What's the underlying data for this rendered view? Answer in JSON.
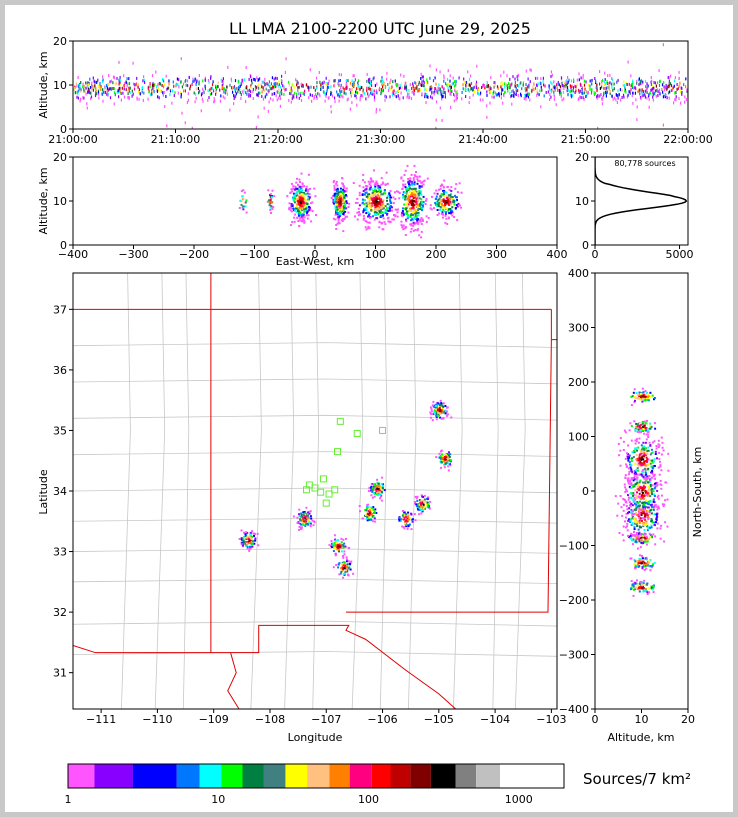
{
  "title": "LL LMA 2100-2200 UTC June 29, 2025",
  "time_panel": {
    "ylabel": "Altitude, km",
    "yticks": [
      "0",
      "10",
      "20"
    ],
    "xticks": [
      "21:00:00",
      "21:10:00",
      "21:20:00",
      "21:30:00",
      "21:40:00",
      "21:50:00",
      "22:00:00"
    ]
  },
  "ew_panel": {
    "ylabel": "Altitude, km",
    "xlabel": "East-West, km",
    "yticks": [
      "0",
      "10",
      "20"
    ],
    "xticks": [
      "−400",
      "−300",
      "−200",
      "−100",
      "0",
      "100",
      "200",
      "300",
      "400"
    ]
  },
  "hist_panel": {
    "annotation": "80,778 sources",
    "xticks": [
      "0",
      "5000"
    ],
    "yticks": [
      "0",
      "10",
      "20"
    ]
  },
  "map_panel": {
    "xlabel": "Longitude",
    "ylabel": "Latitude",
    "xticks": [
      "−111",
      "−110",
      "−109",
      "−108",
      "−107",
      "−106",
      "−105",
      "−104",
      "−103"
    ],
    "yticks": [
      "31",
      "32",
      "33",
      "34",
      "35",
      "36",
      "37"
    ]
  },
  "ns_panel": {
    "ylabel": "North-South, km",
    "xlabel": "Altitude, km",
    "yticks": [
      "−400",
      "−300",
      "−200",
      "−100",
      "0",
      "100",
      "200",
      "300",
      "400"
    ],
    "xticks": [
      "0",
      "10",
      "20"
    ]
  },
  "colorbar": {
    "label": "Sources/7 km²",
    "ticks": [
      "1",
      "10",
      "100",
      "1000"
    ],
    "colors": [
      "#ff55ff",
      "#8800ff",
      "#0000ff",
      "#0077ff",
      "#00ffff",
      "#00ff00",
      "#008040",
      "#408080",
      "#ffff00",
      "#ffc080",
      "#ff8000",
      "#ff0080",
      "#ff0000",
      "#c00000",
      "#800000",
      "#000000",
      "#808080",
      "#c0c0c0",
      "#ffffff"
    ]
  },
  "chart_data": [
    {
      "type": "scatter",
      "panel": "altitude-vs-time",
      "title": "LL LMA 2100-2200 UTC June 29, 2025",
      "ylabel": "Altitude, km",
      "xlim": [
        "21:00:00",
        "22:00:00"
      ],
      "ylim": [
        0,
        20
      ],
      "note": "dense VHF sources concentrated near 10 km altitude throughout the hour"
    },
    {
      "type": "scatter",
      "panel": "altitude-vs-east-west",
      "xlabel": "East-West, km",
      "ylabel": "Altitude, km",
      "xlim": [
        -400,
        400
      ],
      "ylim": [
        0,
        20
      ],
      "clusters_x_km": [
        -120,
        -75,
        -25,
        40,
        100,
        160,
        215
      ]
    },
    {
      "type": "line",
      "panel": "altitude-histogram",
      "annotation": "80,778 sources",
      "xlim": [
        0,
        5500
      ],
      "ylim": [
        0,
        20
      ],
      "peak": {
        "altitude_km": 10,
        "count": 5400
      }
    },
    {
      "type": "scatter",
      "panel": "plan-view-map",
      "xlabel": "Longitude",
      "ylabel": "Latitude",
      "xlim": [
        -111.5,
        -102.9
      ],
      "ylim": [
        30.4,
        37.6
      ],
      "source_clusters": [
        {
          "lon": -107.4,
          "lat": 33.55
        },
        {
          "lon": -106.8,
          "lat": 33.1
        },
        {
          "lon": -106.1,
          "lat": 34.05
        },
        {
          "lon": -105.6,
          "lat": 33.55
        },
        {
          "lon": -105.3,
          "lat": 33.8
        },
        {
          "lon": -104.9,
          "lat": 34.55
        },
        {
          "lon": -105.0,
          "lat": 35.35
        },
        {
          "lon": -106.25,
          "lat": 33.65
        },
        {
          "lon": -106.7,
          "lat": 32.75
        },
        {
          "lon": -108.4,
          "lat": 33.2
        }
      ],
      "stations": [
        {
          "lon": -107.35,
          "lat": 34.02
        },
        {
          "lon": -107.2,
          "lat": 34.05
        },
        {
          "lon": -107.05,
          "lat": 34.2
        },
        {
          "lon": -107.1,
          "lat": 33.98
        },
        {
          "lon": -106.95,
          "lat": 33.95
        },
        {
          "lon": -106.85,
          "lat": 34.02
        },
        {
          "lon": -107.0,
          "lat": 33.8
        },
        {
          "lon": -106.8,
          "lat": 34.65
        },
        {
          "lon": -106.75,
          "lat": 35.15
        },
        {
          "lon": -106.45,
          "lat": 34.95
        },
        {
          "lon": -106.0,
          "lat": 35.0
        },
        {
          "lon": -107.3,
          "lat": 34.1
        }
      ]
    },
    {
      "type": "scatter",
      "panel": "north-south-vs-altitude",
      "xlabel": "Altitude, km",
      "ylabel": "North-South, km",
      "xlim": [
        0,
        20
      ],
      "ylim": [
        -400,
        400
      ],
      "clusters_y_km": [
        -175,
        -130,
        -85,
        -45,
        0,
        60,
        120,
        175
      ]
    }
  ]
}
